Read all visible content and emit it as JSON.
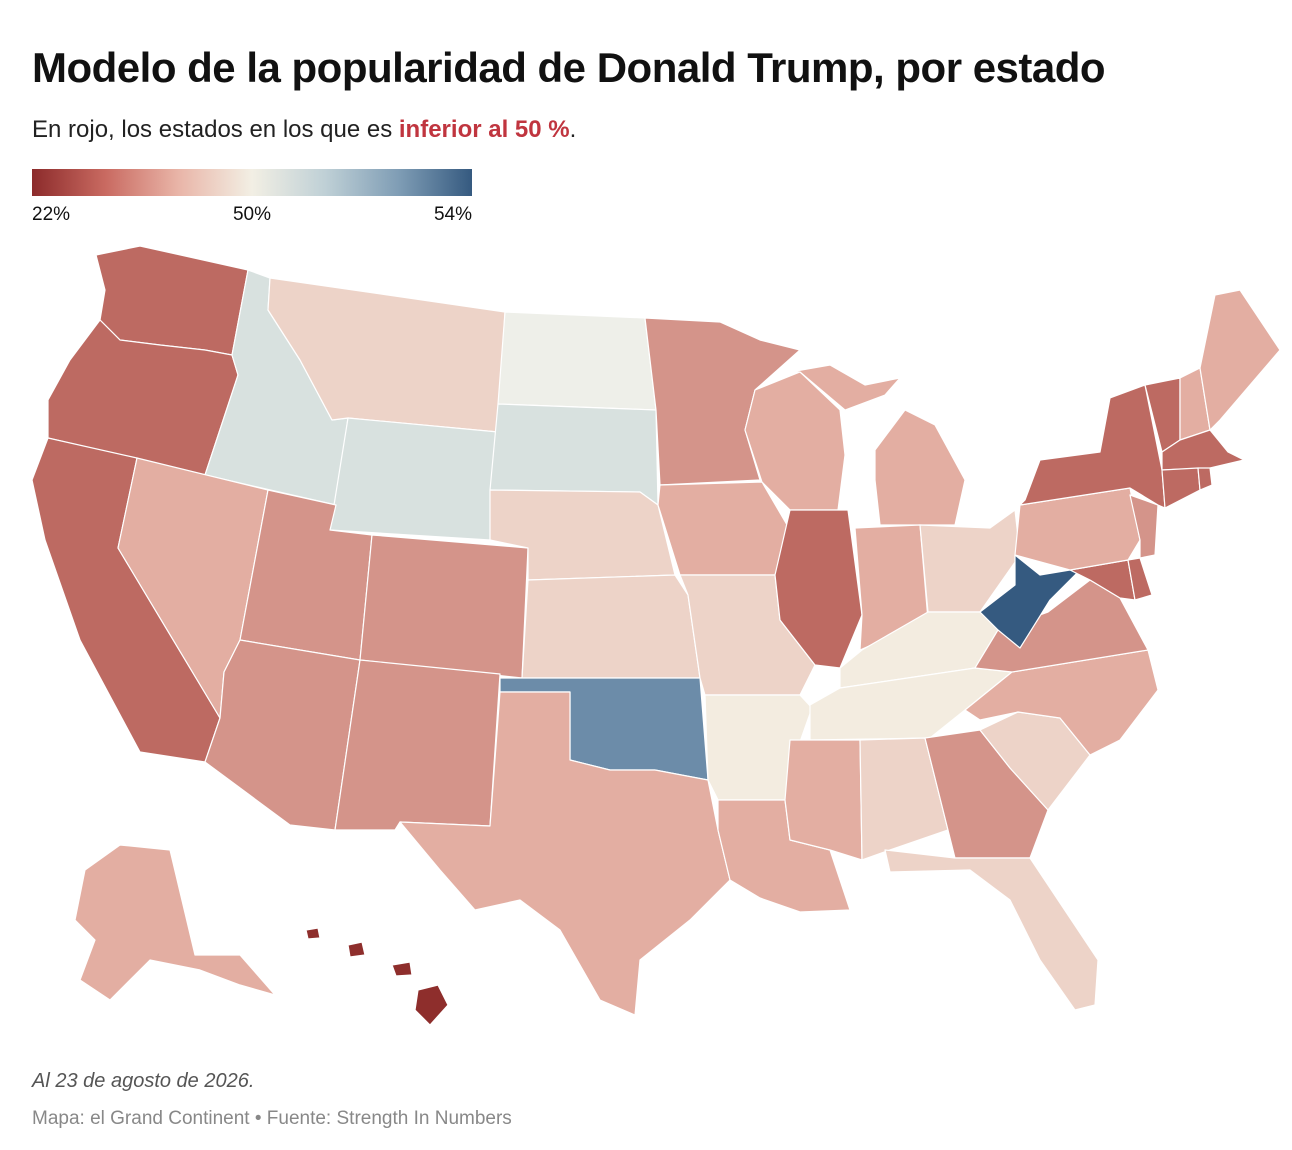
{
  "title": "Modelo de la popularidad de Donald Trump, por estado",
  "subtitle_pre": "En rojo, los estados en los que es ",
  "subtitle_highlight": "inferior al 50 %",
  "subtitle_post": ".",
  "legend": {
    "min_label": "22%",
    "mid_label": "50%",
    "max_label": "54%",
    "colors": [
      "#8c2b2b",
      "#c96a61",
      "#e9b5a8",
      "#f2efe4",
      "#bfd0d6",
      "#7f9db5",
      "#355a80"
    ]
  },
  "colors": {
    "deep_red": "#8e2e2c",
    "red": "#bd6a62",
    "mid_red": "#d4948a",
    "light_red": "#e3aea2",
    "pale_red": "#edd3c8",
    "cream": "#f3ece0",
    "neutral": "#eeefe9",
    "grey_blue": "#d8e1df",
    "blue": "#6c8ca9",
    "dark_blue": "#355a80",
    "highlight": "#c0353f"
  },
  "note": "Al 23 de agosto de 2026.",
  "source": "Mapa: el Grand Continent • Fuente: Strength In Numbers"
}
